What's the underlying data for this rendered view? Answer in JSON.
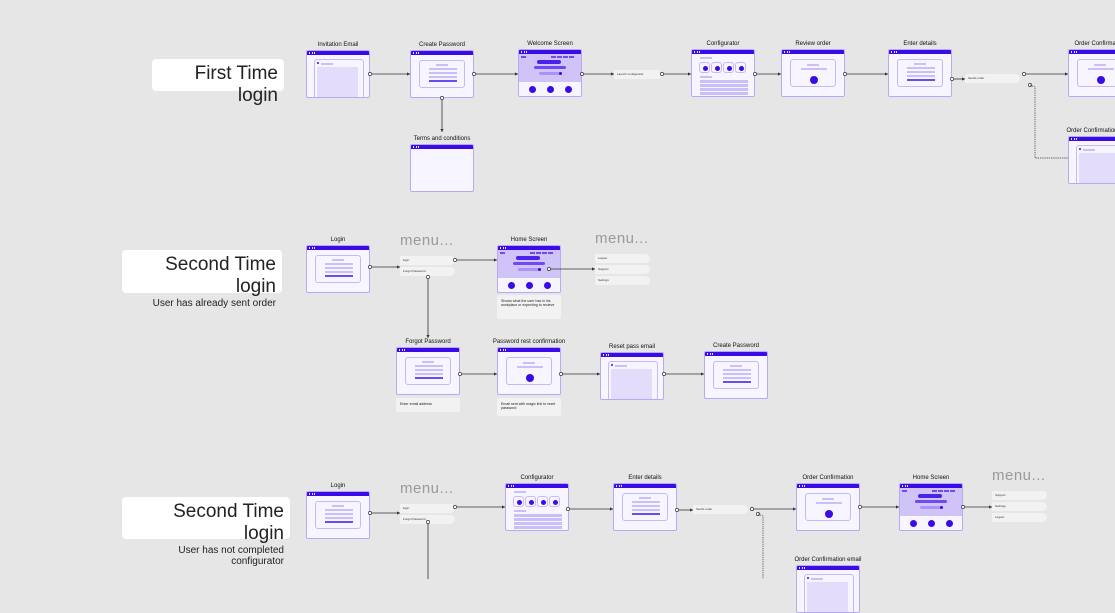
{
  "colors": {
    "accent": "#3a0ae8",
    "light": "#cbbff7",
    "frame": "#f7f5ff",
    "bg": "#e6e6e6"
  },
  "flows": [
    {
      "title": "First Time login",
      "subtitle": ""
    },
    {
      "title": "Second Time login",
      "subtitle": "User has already sent order"
    },
    {
      "title": "Second Time login",
      "subtitle": "User has not completed configurator"
    }
  ],
  "screens": [
    {
      "id": "r1-invite",
      "label": "Invitation Email",
      "type": "email"
    },
    {
      "id": "r1-create",
      "label": "Create Password",
      "type": "form"
    },
    {
      "id": "r1-terms",
      "label": "Terms and conditions",
      "type": "blank"
    },
    {
      "id": "r1-welcome",
      "label": "Welcome Screen",
      "type": "home"
    },
    {
      "id": "r1-config",
      "label": "Configurator",
      "type": "config"
    },
    {
      "id": "r1-review",
      "label": "Review order",
      "type": "check"
    },
    {
      "id": "r1-details",
      "label": "Enter details",
      "type": "form"
    },
    {
      "id": "r1-confirm",
      "label": "Order Confirmation",
      "type": "check"
    },
    {
      "id": "r1-confirm-email",
      "label": "Order Confirmation email",
      "type": "email"
    },
    {
      "id": "r2-login",
      "label": "Login",
      "type": "form"
    },
    {
      "id": "r2-home",
      "label": "Home Screen",
      "type": "home"
    },
    {
      "id": "r2-forgot",
      "label": "Forgot Password",
      "type": "form"
    },
    {
      "id": "r2-reset-conf",
      "label": "Password rest confirmation",
      "type": "check"
    },
    {
      "id": "r2-reset-email",
      "label": "Reset pass email",
      "type": "email"
    },
    {
      "id": "r2-create",
      "label": "Create Password",
      "type": "form"
    },
    {
      "id": "r3-login",
      "label": "Login",
      "type": "form"
    },
    {
      "id": "r3-config",
      "label": "Configurator",
      "type": "config"
    },
    {
      "id": "r3-details",
      "label": "Enter details",
      "type": "form"
    },
    {
      "id": "r3-confirm",
      "label": "Order Confirmation",
      "type": "check"
    },
    {
      "id": "r3-home",
      "label": "Home Screen",
      "type": "home"
    },
    {
      "id": "r3-confirm-email",
      "label": "Order Confirmation email",
      "type": "email"
    }
  ],
  "menus": [
    {
      "heading": "menu...",
      "items": [
        "login",
        "Forgot Password"
      ]
    },
    {
      "heading": "menu...",
      "items": [
        "Logout",
        "Support",
        "Settings"
      ]
    },
    {
      "heading": "menu...",
      "items": [
        "login",
        "Forgot Password"
      ]
    },
    {
      "heading": "menu...",
      "items": [
        "Support",
        "Settings",
        "Logout"
      ]
    }
  ],
  "actions": [
    "Launch configurator",
    "Sends order",
    "Sends order"
  ],
  "notes": [
    "Shows what the user has in his workplace or expecting to recieve",
    "Enter email address",
    "Email sent with magic link to reset password"
  ]
}
